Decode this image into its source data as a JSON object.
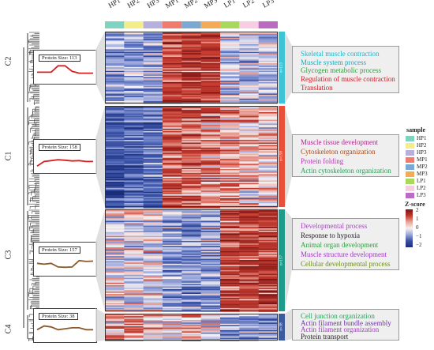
{
  "columns": [
    {
      "label": "HP1",
      "color": "#7fd4c1"
    },
    {
      "label": "HP2",
      "color": "#f4ee8a"
    },
    {
      "label": "HP3",
      "color": "#b8b0dc"
    },
    {
      "label": "MP1",
      "color": "#f07b6e"
    },
    {
      "label": "MP2",
      "color": "#7aa9d4"
    },
    {
      "label": "MP3",
      "color": "#f5aa55"
    },
    {
      "label": "LP1",
      "color": "#a8d85c"
    },
    {
      "label": "LP2",
      "color": "#f8cde3"
    },
    {
      "label": "LP3",
      "color": "#bb6bc2"
    }
  ],
  "clusters": [
    {
      "name": "C2",
      "protein_label": "Protein Size: 113",
      "n_label": "n=113",
      "bar_color": "#3fc4d6",
      "profile": [
        0.55,
        0.55,
        0.55,
        0.2,
        0.2,
        0.5,
        0.6,
        0.6,
        0.6
      ],
      "pattern": [
        -0.6,
        -0.5,
        -0.55,
        1.1,
        1.2,
        1.1,
        -0.3,
        -0.35,
        -0.3
      ],
      "go_terms": [
        {
          "text": "Skeletal  muscle  contraction",
          "color": "#21b3c8"
        },
        {
          "text": "Muscle  system  process",
          "color": "#1aa8c0"
        },
        {
          "text": "Glycogen  metabolic  process",
          "color": "#2e9e3c"
        },
        {
          "text": "Regulation  of  muscle  contraction",
          "color": "#c4232a"
        },
        {
          "text": "Translation",
          "color": "#c4232a"
        }
      ]
    },
    {
      "name": "C1",
      "protein_label": "Protein Size: 158",
      "n_label": "n=158",
      "bar_color": "#e8503a",
      "profile": [
        0.8,
        0.55,
        0.5,
        0.45,
        0.48,
        0.52,
        0.5,
        0.55,
        0.55
      ],
      "pattern": [
        -1.3,
        -1.1,
        -0.9,
        0.9,
        0.8,
        0.6,
        0.4,
        0.3,
        0.2
      ],
      "go_terms": [
        {
          "text": "Muscle  tissue  development",
          "color": "#b0278c"
        },
        {
          "text": "Cytoskeleton   organization",
          "color": "#a84a1c"
        },
        {
          "text": "Protein  folding",
          "color": "#b03ab0"
        },
        {
          "text": "Actin  cytoskeleton   organization",
          "color": "#2e9e5e"
        }
      ]
    },
    {
      "name": "C3",
      "protein_label": "Protein Size: 157",
      "n_label": "n=157",
      "bar_color": "#1f9b8c",
      "profile": [
        0.5,
        0.55,
        0.5,
        0.7,
        0.72,
        0.7,
        0.35,
        0.4,
        0.38
      ],
      "pattern": [
        -0.1,
        0.0,
        -0.1,
        -0.6,
        -0.7,
        -0.5,
        1.0,
        1.1,
        1.2
      ],
      "go_terms": [
        {
          "text": "Developmental   process",
          "color": "#a04ab8"
        },
        {
          "text": "Response    to hypoxia",
          "color": "#222222"
        },
        {
          "text": "Animal  organ  development",
          "color": "#2e9e3c"
        },
        {
          "text": "Muscle  structure  development",
          "color": "#a03ac0"
        },
        {
          "text": "Cellular  developmental   process",
          "color": "#6e8e1c"
        }
      ]
    },
    {
      "name": "C4",
      "protein_label": "Protein Size: 38",
      "n_label": "n=38",
      "bar_color": "#3c5aa0",
      "profile": [
        0.5,
        0.3,
        0.35,
        0.5,
        0.45,
        0.4,
        0.4,
        0.5,
        0.5
      ],
      "pattern": [
        0.5,
        0.4,
        0.3,
        0.2,
        0.1,
        0.0,
        -0.6,
        -0.7,
        -0.8
      ],
      "go_terms": [
        {
          "text": "Cell junction  organization",
          "color": "#2e9e5e"
        },
        {
          "text": "Actin filament  bundle assembly",
          "color": "#7030b0"
        },
        {
          "text": "Actin filament  organization",
          "color": "#a03ac0"
        },
        {
          "text": "Protein  transport",
          "color": "#222222"
        }
      ]
    }
  ],
  "legend": {
    "sample_title": "sample",
    "zscore_title": "Z-score",
    "zscore_ticks": [
      "2",
      "1",
      "0",
      "−1",
      "−2"
    ]
  }
}
